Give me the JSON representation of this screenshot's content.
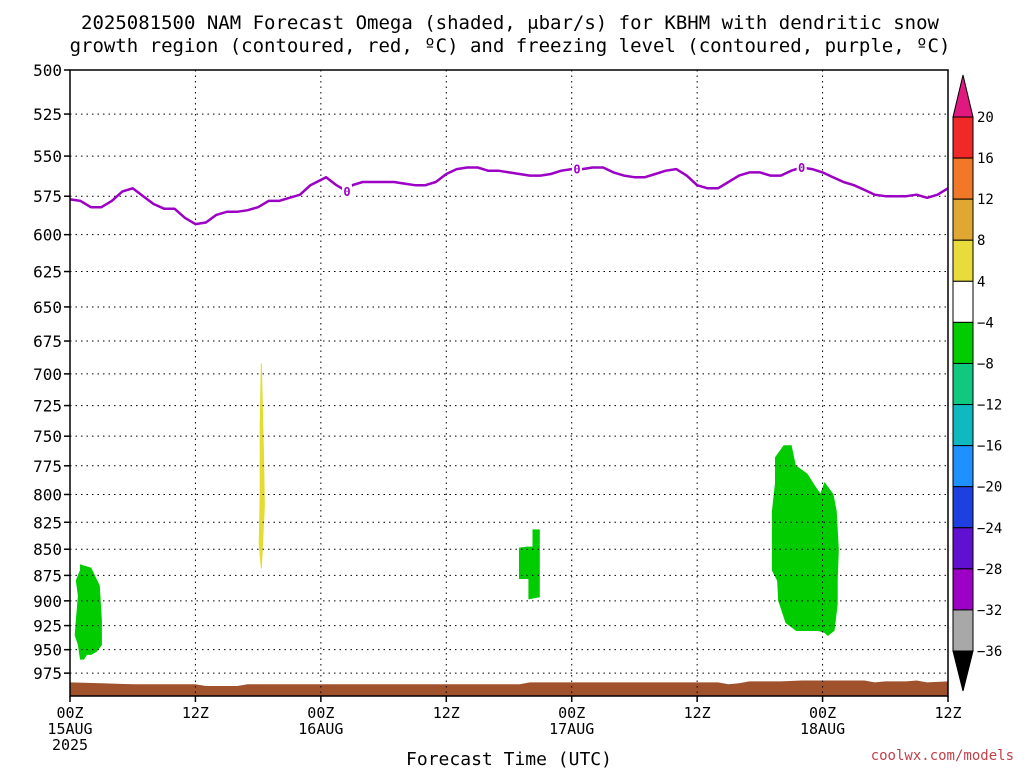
{
  "chart_data": {
    "type": "area",
    "title_lines": [
      "2025081500 NAM Forecast Omega (shaded, μbar/s) for KBHM with dendritic snow",
      "growth region (contoured, red, ºC) and freezing level (contoured, purple, ºC)"
    ],
    "xlabel": "Forecast Time (UTC)",
    "credit": "coolwx.com/models",
    "x_range_hours": [
      0,
      84
    ],
    "y_range_hpa": [
      500,
      1000
    ],
    "y_scale": "log-pressure",
    "y_ticks": [
      500,
      525,
      550,
      575,
      600,
      625,
      650,
      675,
      700,
      725,
      750,
      775,
      800,
      825,
      850,
      875,
      900,
      925,
      950,
      975
    ],
    "x_ticks": [
      {
        "hour": 0,
        "label": "00Z",
        "date": "15AUG",
        "year": "2025"
      },
      {
        "hour": 12,
        "label": "12Z",
        "date": "",
        "year": ""
      },
      {
        "hour": 24,
        "label": "00Z",
        "date": "16AUG",
        "year": ""
      },
      {
        "hour": 36,
        "label": "12Z",
        "date": "",
        "year": ""
      },
      {
        "hour": 48,
        "label": "00Z",
        "date": "17AUG",
        "year": ""
      },
      {
        "hour": 60,
        "label": "12Z",
        "date": "",
        "year": ""
      },
      {
        "hour": 72,
        "label": "00Z",
        "date": "18AUG",
        "year": ""
      },
      {
        "hour": 84,
        "label": "12Z",
        "date": "",
        "year": ""
      }
    ],
    "grid": true,
    "freezing_level": {
      "label": "0",
      "label_hours": [
        26.5,
        48.5,
        70
      ],
      "color": "#9b00c4",
      "points": [
        [
          0,
          577
        ],
        [
          1,
          578
        ],
        [
          2,
          582
        ],
        [
          3,
          582
        ],
        [
          4,
          578
        ],
        [
          5,
          572
        ],
        [
          6,
          570
        ],
        [
          7,
          575
        ],
        [
          8,
          580
        ],
        [
          9,
          583
        ],
        [
          10,
          583
        ],
        [
          11,
          589
        ],
        [
          12,
          593
        ],
        [
          13,
          592
        ],
        [
          14,
          587
        ],
        [
          15,
          585
        ],
        [
          16,
          585
        ],
        [
          17,
          584
        ],
        [
          18,
          582
        ],
        [
          19,
          578
        ],
        [
          20,
          578
        ],
        [
          21,
          576
        ],
        [
          22,
          574
        ],
        [
          23,
          568
        ],
        [
          24.5,
          563
        ],
        [
          25.5,
          568
        ],
        [
          26.5,
          572
        ],
        [
          27,
          568
        ],
        [
          28,
          566
        ],
        [
          29,
          566
        ],
        [
          30,
          566
        ],
        [
          31,
          566
        ],
        [
          32,
          567
        ],
        [
          33,
          568
        ],
        [
          34,
          568
        ],
        [
          35,
          566
        ],
        [
          36,
          561
        ],
        [
          37,
          558
        ],
        [
          38,
          557
        ],
        [
          39,
          557
        ],
        [
          40,
          559
        ],
        [
          41,
          559
        ],
        [
          42,
          560
        ],
        [
          43,
          561
        ],
        [
          44,
          562
        ],
        [
          45,
          562
        ],
        [
          46,
          561
        ],
        [
          47,
          559
        ],
        [
          48,
          558
        ],
        [
          49,
          558
        ],
        [
          50,
          557
        ],
        [
          51,
          557
        ],
        [
          52,
          560
        ],
        [
          53,
          562
        ],
        [
          54,
          563
        ],
        [
          55,
          563
        ],
        [
          56,
          561
        ],
        [
          57,
          559
        ],
        [
          58,
          558
        ],
        [
          59,
          562
        ],
        [
          60,
          568
        ],
        [
          61,
          570
        ],
        [
          62,
          570
        ],
        [
          63,
          566
        ],
        [
          64,
          562
        ],
        [
          65,
          560
        ],
        [
          66,
          560
        ],
        [
          67,
          562
        ],
        [
          68,
          562
        ],
        [
          69,
          559
        ],
        [
          70,
          557
        ],
        [
          71,
          558
        ],
        [
          72,
          560
        ],
        [
          73,
          563
        ],
        [
          74,
          566
        ],
        [
          75,
          568
        ],
        [
          76,
          571
        ],
        [
          77,
          574
        ],
        [
          78,
          575
        ],
        [
          79,
          575
        ],
        [
          80,
          575
        ],
        [
          81,
          574
        ],
        [
          82,
          576
        ],
        [
          83,
          574
        ],
        [
          84,
          570
        ]
      ]
    },
    "omega_regions": [
      {
        "color": "#00cc00",
        "value_range": "-8 to -4",
        "points": [
          [
            1,
            865
          ],
          [
            2,
            868
          ],
          [
            2.8,
            885
          ],
          [
            3,
            920
          ],
          [
            3,
            945
          ],
          [
            2.5,
            952
          ],
          [
            2,
            955
          ],
          [
            1.6,
            955
          ],
          [
            1.3,
            960
          ],
          [
            1,
            960
          ],
          [
            0.8,
            945
          ],
          [
            0.5,
            935
          ],
          [
            0.6,
            920
          ],
          [
            0.8,
            895
          ],
          [
            0.6,
            880
          ],
          [
            1,
            870
          ]
        ]
      },
      {
        "color": "#e5dc32",
        "value_range": "4 to 8",
        "points": [
          [
            18.3,
            692
          ],
          [
            18.5,
            760
          ],
          [
            18.6,
            810
          ],
          [
            18.4,
            850
          ],
          [
            18.3,
            868
          ],
          [
            18.1,
            845
          ],
          [
            18.2,
            800
          ],
          [
            18.2,
            740
          ]
        ]
      },
      {
        "color": "#00cc00",
        "value_range": "-8 to -4",
        "points": [
          [
            43.7,
            848
          ],
          [
            44.3,
            848
          ],
          [
            44.3,
            832
          ],
          [
            44.9,
            832
          ],
          [
            44.9,
            896
          ],
          [
            43.9,
            898
          ],
          [
            43.9,
            878
          ],
          [
            43,
            878
          ],
          [
            43,
            849
          ]
        ]
      },
      {
        "color": "#00cc00",
        "value_range": "-8 to -4",
        "points": [
          [
            67.5,
            768
          ],
          [
            68.3,
            758
          ],
          [
            69,
            758
          ],
          [
            69.4,
            775
          ],
          [
            70.5,
            782
          ],
          [
            71.2,
            792
          ],
          [
            71.8,
            800
          ],
          [
            72.2,
            790
          ],
          [
            73,
            800
          ],
          [
            73.3,
            815
          ],
          [
            73.5,
            850
          ],
          [
            73.4,
            880
          ],
          [
            73.4,
            903
          ],
          [
            73.1,
            930
          ],
          [
            72.5,
            935
          ],
          [
            72.2,
            932
          ],
          [
            71.6,
            930
          ],
          [
            70.5,
            930
          ],
          [
            69.5,
            930
          ],
          [
            68.5,
            922
          ],
          [
            67.8,
            900
          ],
          [
            67.7,
            880
          ],
          [
            67.2,
            870
          ],
          [
            67.2,
            840
          ],
          [
            67.2,
            815
          ],
          [
            67.5,
            790
          ]
        ]
      }
    ],
    "terrain": {
      "color": "#a0522d",
      "points": [
        [
          0,
          985
        ],
        [
          3,
          986
        ],
        [
          6,
          987
        ],
        [
          9,
          987
        ],
        [
          12,
          987
        ],
        [
          13,
          989
        ],
        [
          16,
          989
        ],
        [
          17,
          987
        ],
        [
          24,
          987
        ],
        [
          36,
          987
        ],
        [
          43,
          987
        ],
        [
          44,
          985
        ],
        [
          48,
          985
        ],
        [
          60,
          985
        ],
        [
          62,
          985
        ],
        [
          63,
          987
        ],
        [
          64,
          986
        ],
        [
          65,
          984
        ],
        [
          68,
          984
        ],
        [
          70,
          983
        ],
        [
          76,
          983
        ],
        [
          77,
          985
        ],
        [
          78,
          984
        ],
        [
          80,
          984
        ],
        [
          81,
          983
        ],
        [
          82,
          985
        ],
        [
          84,
          984
        ]
      ]
    },
    "colorbar": {
      "unit": "μbar/s",
      "levels": [
        "20",
        "16",
        "12",
        "8",
        "4",
        "−4",
        "−8",
        "−12",
        "−16",
        "−20",
        "−24",
        "−28",
        "−32",
        "−36"
      ],
      "colors": [
        "#f02828",
        "#f07828",
        "#e0a832",
        "#e8dc3c",
        "#ffffff",
        "#00cc00",
        "#10c880",
        "#10b8c0",
        "#1e90ff",
        "#1e40e0",
        "#6010d0",
        "#9b00c4",
        "#a8a8a8"
      ],
      "top_arrow_color": "#e01880",
      "bottom_arrow_color": "#000000"
    }
  }
}
